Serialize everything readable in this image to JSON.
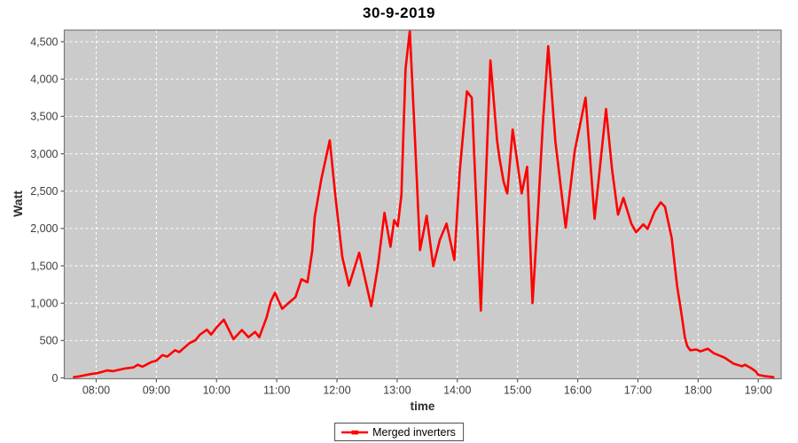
{
  "chart": {
    "title": "30-9-2019",
    "x_axis_label": "time",
    "y_axis_label": "Watt",
    "legend": {
      "label": "Merged inverters"
    }
  },
  "colors": {
    "series": "#ff0000",
    "plot_background": "#cbcbcb",
    "gridline": "#ffffff",
    "plot_border": "#7a7a7a",
    "tick_mark": "#5a5a5a",
    "tick_label": "#3d3d3d",
    "axis_label": "#2e2e2e",
    "title": "#000000",
    "outer_background": "#ffffff"
  },
  "chart_data": {
    "type": "line",
    "title": "30-9-2019",
    "xlabel": "time",
    "ylabel": "Watt",
    "legend_entries": [
      "Merged inverters"
    ],
    "legend_position": "bottom-center",
    "grid": "white dashed gridlines on light-gray plot background",
    "xlim": [
      7.47,
      19.38
    ],
    "ylim": [
      0,
      4650
    ],
    "xticks": [
      {
        "v": 8,
        "label": "08:00"
      },
      {
        "v": 9,
        "label": "09:00"
      },
      {
        "v": 10,
        "label": "10:00"
      },
      {
        "v": 11,
        "label": "11:00"
      },
      {
        "v": 12,
        "label": "12:00"
      },
      {
        "v": 13,
        "label": "13:00"
      },
      {
        "v": 14,
        "label": "14:00"
      },
      {
        "v": 15,
        "label": "15:00"
      },
      {
        "v": 16,
        "label": "16:00"
      },
      {
        "v": 17,
        "label": "17:00"
      },
      {
        "v": 18,
        "label": "18:00"
      },
      {
        "v": 19,
        "label": "19:00"
      }
    ],
    "yticks": [
      {
        "v": 0,
        "label": "0"
      },
      {
        "v": 500,
        "label": "500"
      },
      {
        "v": 1000,
        "label": "1,000"
      },
      {
        "v": 1500,
        "label": "1,500"
      },
      {
        "v": 2000,
        "label": "2,000"
      },
      {
        "v": 2500,
        "label": "2,500"
      },
      {
        "v": 3000,
        "label": "3,000"
      },
      {
        "v": 3500,
        "label": "3,500"
      },
      {
        "v": 4000,
        "label": "4,000"
      },
      {
        "v": 4500,
        "label": "4,500"
      }
    ],
    "series": [
      {
        "name": "Merged inverters",
        "color": "#ff0000",
        "x_unit": "hour_of_day_decimal",
        "y_unit": "watt",
        "points": [
          [
            7.63,
            10
          ],
          [
            7.72,
            20
          ],
          [
            7.81,
            35
          ],
          [
            7.9,
            50
          ],
          [
            8.03,
            65
          ],
          [
            8.18,
            100
          ],
          [
            8.28,
            90
          ],
          [
            8.47,
            125
          ],
          [
            8.62,
            140
          ],
          [
            8.69,
            175
          ],
          [
            8.77,
            150
          ],
          [
            8.91,
            210
          ],
          [
            9.0,
            230
          ],
          [
            9.1,
            305
          ],
          [
            9.18,
            285
          ],
          [
            9.31,
            370
          ],
          [
            9.38,
            345
          ],
          [
            9.55,
            465
          ],
          [
            9.65,
            505
          ],
          [
            9.72,
            575
          ],
          [
            9.84,
            645
          ],
          [
            9.91,
            580
          ],
          [
            9.99,
            665
          ],
          [
            10.12,
            780
          ],
          [
            10.28,
            520
          ],
          [
            10.42,
            640
          ],
          [
            10.53,
            545
          ],
          [
            10.64,
            615
          ],
          [
            10.71,
            545
          ],
          [
            10.83,
            805
          ],
          [
            10.9,
            1020
          ],
          [
            10.97,
            1140
          ],
          [
            11.09,
            925
          ],
          [
            11.2,
            1005
          ],
          [
            11.31,
            1080
          ],
          [
            11.41,
            1320
          ],
          [
            11.51,
            1280
          ],
          [
            11.59,
            1705
          ],
          [
            11.63,
            2150
          ],
          [
            11.74,
            2660
          ],
          [
            11.88,
            3180
          ],
          [
            11.98,
            2385
          ],
          [
            12.09,
            1615
          ],
          [
            12.2,
            1235
          ],
          [
            12.37,
            1675
          ],
          [
            12.57,
            960
          ],
          [
            12.68,
            1495
          ],
          [
            12.79,
            2210
          ],
          [
            12.89,
            1755
          ],
          [
            12.95,
            2110
          ],
          [
            13.01,
            2030
          ],
          [
            13.07,
            2445
          ],
          [
            13.14,
            4140
          ],
          [
            13.21,
            4650
          ],
          [
            13.3,
            3120
          ],
          [
            13.38,
            1710
          ],
          [
            13.49,
            2170
          ],
          [
            13.6,
            1495
          ],
          [
            13.71,
            1850
          ],
          [
            13.82,
            2065
          ],
          [
            13.95,
            1580
          ],
          [
            14.04,
            2765
          ],
          [
            14.16,
            3835
          ],
          [
            14.24,
            3750
          ],
          [
            14.39,
            900
          ],
          [
            14.48,
            2800
          ],
          [
            14.55,
            4250
          ],
          [
            14.66,
            3180
          ],
          [
            14.7,
            2940
          ],
          [
            14.77,
            2620
          ],
          [
            14.83,
            2470
          ],
          [
            14.92,
            3325
          ],
          [
            15.07,
            2470
          ],
          [
            15.16,
            2825
          ],
          [
            15.25,
            1000
          ],
          [
            15.33,
            2090
          ],
          [
            15.42,
            3395
          ],
          [
            15.51,
            4440
          ],
          [
            15.63,
            3160
          ],
          [
            15.8,
            2010
          ],
          [
            15.95,
            3040
          ],
          [
            16.13,
            3750
          ],
          [
            16.28,
            2130
          ],
          [
            16.47,
            3600
          ],
          [
            16.57,
            2800
          ],
          [
            16.67,
            2185
          ],
          [
            16.76,
            2410
          ],
          [
            16.89,
            2065
          ],
          [
            16.97,
            1950
          ],
          [
            17.09,
            2055
          ],
          [
            17.16,
            1995
          ],
          [
            17.28,
            2230
          ],
          [
            17.38,
            2350
          ],
          [
            17.45,
            2290
          ],
          [
            17.56,
            1875
          ],
          [
            17.65,
            1235
          ],
          [
            17.72,
            880
          ],
          [
            17.78,
            545
          ],
          [
            17.82,
            425
          ],
          [
            17.87,
            370
          ],
          [
            17.97,
            380
          ],
          [
            18.04,
            355
          ],
          [
            18.16,
            390
          ],
          [
            18.26,
            330
          ],
          [
            18.44,
            270
          ],
          [
            18.59,
            190
          ],
          [
            18.73,
            155
          ],
          [
            18.78,
            175
          ],
          [
            18.88,
            130
          ],
          [
            18.96,
            85
          ],
          [
            19.0,
            40
          ],
          [
            19.1,
            25
          ],
          [
            19.25,
            10
          ]
        ]
      }
    ]
  }
}
